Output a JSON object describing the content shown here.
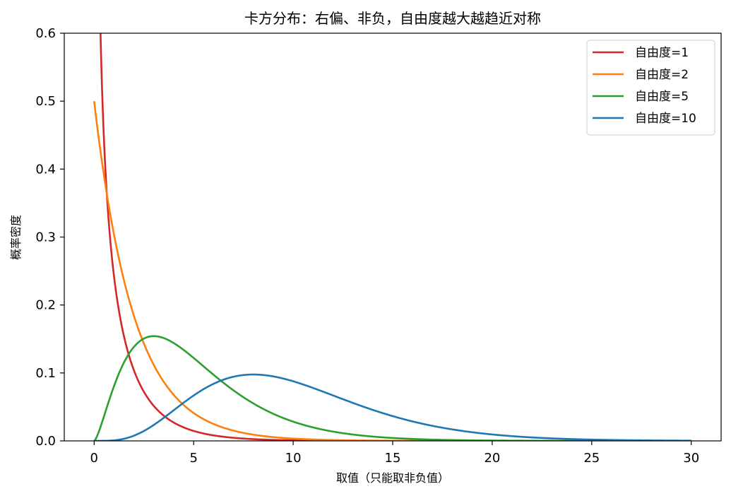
{
  "chart_data": {
    "type": "line",
    "title": "卡方分布：右偏、非负，自由度越大越趋近对称",
    "xlabel": "取值（只能取非负值）",
    "ylabel": "概率密度",
    "xlim": [
      -1.5,
      31.5
    ],
    "ylim": [
      0,
      0.6
    ],
    "xticks": [
      0,
      5,
      10,
      15,
      20,
      25,
      30
    ],
    "xtick_labels": [
      "0",
      "5",
      "10",
      "15",
      "20",
      "25",
      "30"
    ],
    "yticks": [
      0.0,
      0.1,
      0.2,
      0.3,
      0.4,
      0.5,
      0.6
    ],
    "ytick_labels": [
      "0.0",
      "0.1",
      "0.2",
      "0.3",
      "0.4",
      "0.5",
      "0.6"
    ],
    "grid": false,
    "legend_position": "top-right",
    "x_range": [
      0,
      30
    ],
    "series": [
      {
        "name": "自由度=1",
        "df": 1,
        "color": "#d62728"
      },
      {
        "name": "自由度=2",
        "df": 2,
        "color": "#ff7f0e"
      },
      {
        "name": "自由度=5",
        "df": 5,
        "color": "#2ca02c"
      },
      {
        "name": "自由度=10",
        "df": 10,
        "color": "#1f77b4"
      }
    ]
  }
}
